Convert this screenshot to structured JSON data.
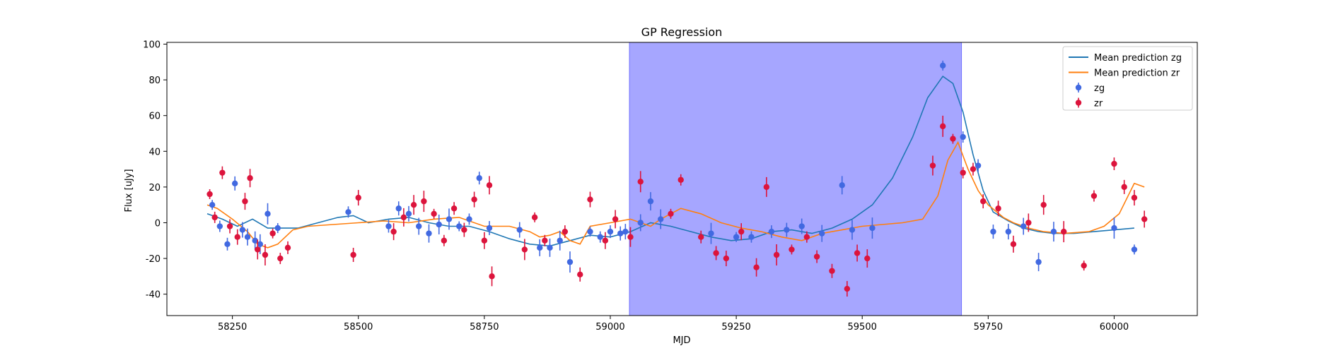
{
  "chart_data": {
    "type": "scatter",
    "title": "GP Regression",
    "xlabel": "MJD",
    "ylabel": "Flux [uJy]",
    "xlim": [
      58120,
      60165
    ],
    "ylim": [
      -52,
      101
    ],
    "xticks": [
      58250,
      58500,
      58750,
      59000,
      59250,
      59500,
      59750,
      60000
    ],
    "yticks": [
      -40,
      -20,
      0,
      20,
      40,
      60,
      80,
      100
    ],
    "grid": false,
    "legend_position": "top-right",
    "shaded_region": {
      "x_start": 59038,
      "x_end": 59697,
      "color": "#a6a6ff"
    },
    "colors": {
      "zg": "#4169e1",
      "zr": "#dc143c",
      "mean_zg": "#1f77b4",
      "mean_zr": "#ff7f0e"
    },
    "legend": [
      {
        "label": "Mean prediction zg",
        "kind": "line",
        "color": "#1f77b4"
      },
      {
        "label": "Mean prediction zr",
        "kind": "line",
        "color": "#ff7f0e"
      },
      {
        "label": "zg",
        "kind": "point",
        "color": "#4169e1"
      },
      {
        "label": "zr",
        "kind": "point",
        "color": "#dc143c"
      }
    ],
    "series": [
      {
        "name": "Mean prediction zg",
        "kind": "line",
        "x": [
          58200,
          58230,
          58260,
          58290,
          58320,
          58350,
          58380,
          58420,
          58460,
          58490,
          58520,
          58560,
          58600,
          58640,
          58680,
          58720,
          58760,
          58800,
          58840,
          58880,
          58920,
          58960,
          59000,
          59040,
          59080,
          59120,
          59160,
          59200,
          59240,
          59280,
          59320,
          59360,
          59400,
          59440,
          59480,
          59520,
          59560,
          59600,
          59630,
          59660,
          59680,
          59700,
          59720,
          59740,
          59760,
          59790,
          59820,
          59850,
          59880,
          59920,
          59960,
          60000,
          60040
        ],
        "y": [
          5,
          2,
          -2,
          2,
          -3,
          -3,
          -3,
          0,
          3,
          4,
          0,
          2,
          3,
          0,
          -2,
          -2,
          -5,
          -9,
          -12,
          -13,
          -10,
          -7,
          -8,
          -5,
          0,
          -2,
          -5,
          -8,
          -10,
          -9,
          -5,
          -4,
          -6,
          -3,
          2,
          10,
          25,
          48,
          70,
          82,
          78,
          62,
          38,
          18,
          6,
          1,
          -3,
          -5,
          -6,
          -6,
          -5,
          -4,
          -3
        ]
      },
      {
        "name": "Mean prediction zr",
        "kind": "line",
        "x": [
          58200,
          58220,
          58250,
          58280,
          58300,
          58320,
          58340,
          58370,
          58400,
          58450,
          58500,
          58550,
          58600,
          58650,
          58700,
          58750,
          58800,
          58840,
          58860,
          58880,
          58900,
          58920,
          58940,
          58960,
          59000,
          59040,
          59080,
          59100,
          59140,
          59180,
          59220,
          59260,
          59300,
          59340,
          59380,
          59420,
          59460,
          59500,
          59540,
          59580,
          59620,
          59650,
          59670,
          59690,
          59710,
          59730,
          59750,
          59780,
          59800,
          59830,
          59860,
          59900,
          59950,
          59980,
          60010,
          60040,
          60060
        ],
        "y": [
          10,
          8,
          2,
          -5,
          -12,
          -14,
          -12,
          -4,
          -2,
          -1,
          0,
          1,
          0,
          2,
          3,
          -2,
          -2,
          -5,
          -8,
          -7,
          -5,
          -10,
          -12,
          -2,
          0,
          2,
          -2,
          2,
          8,
          5,
          0,
          -3,
          -5,
          -8,
          -10,
          -6,
          -4,
          -2,
          -1,
          0,
          2,
          15,
          35,
          45,
          30,
          18,
          10,
          3,
          0,
          -3,
          -5,
          -6,
          -5,
          -2,
          5,
          22,
          20
        ]
      },
      {
        "name": "zg",
        "kind": "points",
        "x": [
          58210,
          58225,
          58240,
          58255,
          58270,
          58280,
          58295,
          58305,
          58320,
          58340,
          58480,
          58560,
          58580,
          58600,
          58620,
          58640,
          58660,
          58680,
          58700,
          58720,
          58740,
          58760,
          58820,
          58860,
          58880,
          58900,
          58920,
          58960,
          58980,
          59000,
          59020,
          59030,
          59060,
          59080,
          59100,
          59200,
          59250,
          59280,
          59320,
          59350,
          59380,
          59420,
          59460,
          59480,
          59520,
          59660,
          59700,
          59730,
          59760,
          59790,
          59820,
          59850,
          59880,
          60000,
          60040
        ],
        "y": [
          10,
          -2,
          -12,
          22,
          -4,
          -8,
          -10,
          -12,
          5,
          -3,
          6,
          -2,
          8,
          5,
          -2,
          -6,
          -1,
          2,
          -2,
          2,
          25,
          -3,
          -4,
          -14,
          -14,
          -10,
          -22,
          -5,
          -8,
          -5,
          -6,
          -5,
          0,
          12,
          2,
          -6,
          -8,
          -8,
          -5,
          -4,
          -2,
          -6,
          21,
          -4,
          -3,
          88,
          48,
          32,
          -5,
          -5,
          -2,
          -22,
          -5,
          -3,
          -15
        ]
      },
      {
        "name": "zr",
        "kind": "points",
        "x": [
          58205,
          58215,
          58230,
          58245,
          58260,
          58275,
          58285,
          58300,
          58315,
          58330,
          58345,
          58360,
          58490,
          58500,
          58570,
          58590,
          58610,
          58630,
          58650,
          58670,
          58690,
          58710,
          58730,
          58750,
          58760,
          58765,
          58830,
          58850,
          58870,
          58910,
          58940,
          58960,
          58990,
          59010,
          59040,
          59060,
          59120,
          59140,
          59180,
          59210,
          59230,
          59260,
          59290,
          59310,
          59330,
          59360,
          59390,
          59410,
          59440,
          59470,
          59490,
          59510,
          59640,
          59660,
          59680,
          59700,
          59720,
          59740,
          59770,
          59800,
          59830,
          59860,
          59900,
          59940,
          59960,
          60000,
          60020,
          60040,
          60060
        ],
        "y": [
          16,
          3,
          28,
          -2,
          -8,
          12,
          25,
          -15,
          -18,
          -6,
          -20,
          -14,
          -18,
          14,
          -5,
          3,
          10,
          12,
          5,
          -10,
          8,
          -4,
          13,
          -10,
          21,
          -30,
          -15,
          3,
          -10,
          -5,
          -29,
          13,
          -10,
          2,
          -8,
          23,
          5,
          24,
          -8,
          -17,
          -20,
          -5,
          -25,
          20,
          -18,
          -15,
          -8,
          -19,
          -27,
          -37,
          -17,
          -20,
          32,
          54,
          47,
          28,
          30,
          12,
          8,
          -12,
          0,
          10,
          -5,
          -24,
          15,
          33,
          20,
          14,
          2
        ]
      }
    ]
  }
}
